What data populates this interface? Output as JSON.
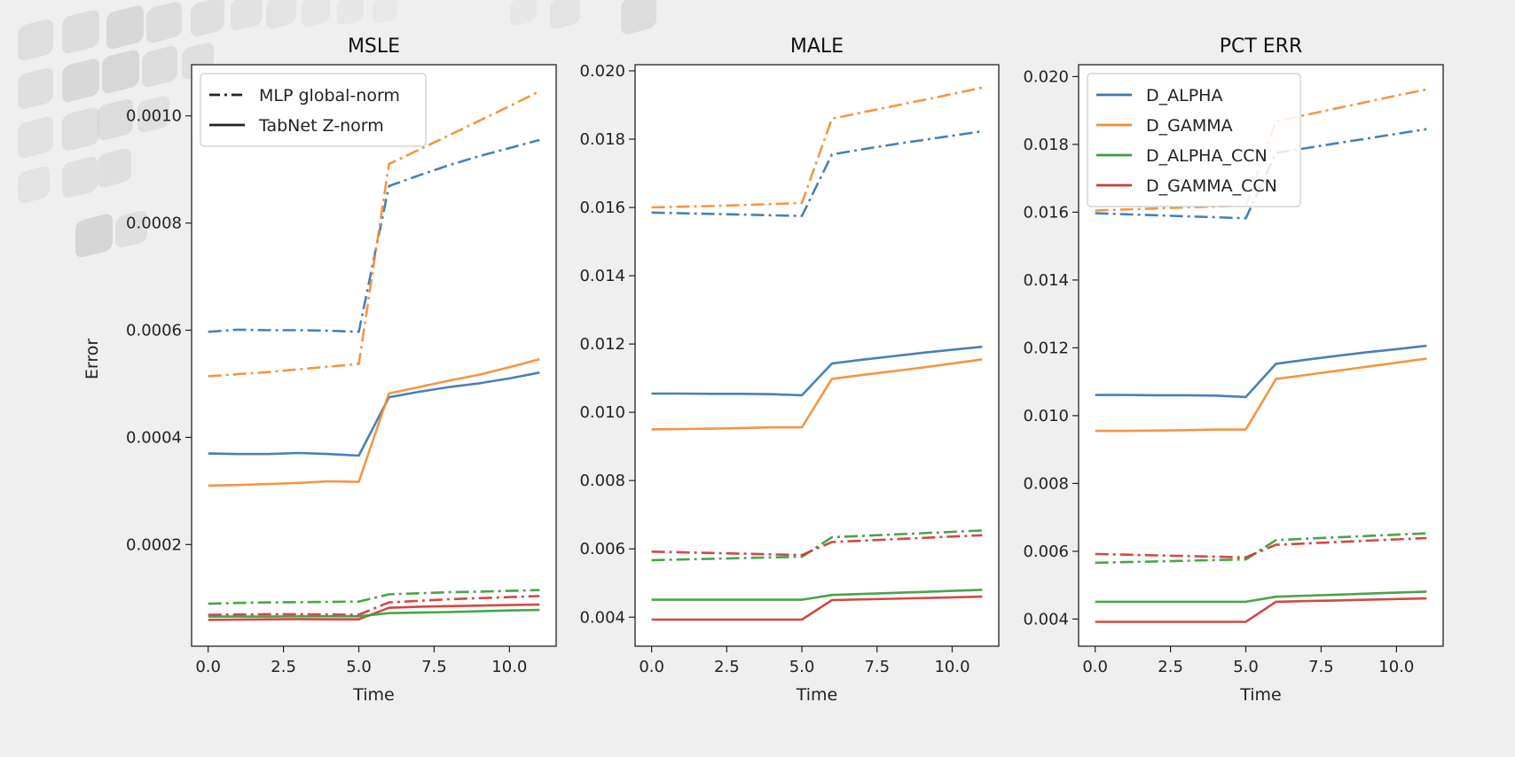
{
  "figure": {
    "ylabel": "Error"
  },
  "colors": {
    "D_ALPHA": "#3a75b0",
    "D_GAMMA": "#f28d35",
    "D_ALPHA_CCN": "#3a9c3a",
    "D_GAMMA_CCN": "#cc3a36"
  },
  "chart_data": [
    {
      "type": "line",
      "title": "MSLE",
      "xlabel": "Time",
      "ylabel": "Error",
      "x": [
        0,
        1,
        2,
        3,
        4,
        5,
        6,
        7,
        8,
        9,
        10,
        11
      ],
      "xlim": [
        -0.55,
        11.55
      ],
      "ylim": [
        1.03e-05,
        0.0010955
      ],
      "xticks": [
        0.0,
        2.5,
        5.0,
        7.5,
        10.0
      ],
      "xtick_labels": [
        "0.0",
        "2.5",
        "5.0",
        "7.5",
        "10.0"
      ],
      "yticks": [
        0.0002,
        0.0004,
        0.0006,
        0.0008,
        0.001
      ],
      "ytick_labels": [
        "0.0002",
        "0.0004",
        "0.0006",
        "0.0008",
        "0.0010"
      ],
      "legend": {
        "placement": "upper-left",
        "entries": [
          {
            "label": "MLP global-norm",
            "style": "dashdot"
          },
          {
            "label": "TabNet Z-norm",
            "style": "solid"
          }
        ]
      },
      "series": [
        {
          "name": "D_ALPHA",
          "model": "MLP global-norm",
          "style": "dashdot",
          "values": [
            0.000597,
            0.000601,
            0.0006,
            0.0006,
            0.000599,
            0.000597,
            0.000869,
            0.000889,
            0.000908,
            0.000925,
            0.00094,
            0.000955
          ]
        },
        {
          "name": "D_GAMMA",
          "model": "MLP global-norm",
          "style": "dashdot",
          "values": [
            0.000514,
            0.000518,
            0.000522,
            0.000527,
            0.000532,
            0.000537,
            0.00091,
            0.000937,
            0.000964,
            0.000991,
            0.001018,
            0.001046
          ]
        },
        {
          "name": "D_ALPHA",
          "model": "TabNet Z-norm",
          "style": "solid",
          "values": [
            0.00037,
            0.000369,
            0.000369,
            0.000371,
            0.000369,
            0.000366,
            0.000475,
            0.000485,
            0.000494,
            0.000501,
            0.00051,
            0.000521
          ]
        },
        {
          "name": "D_GAMMA",
          "model": "TabNet Z-norm",
          "style": "solid",
          "values": [
            0.00031,
            0.000311,
            0.000313,
            0.000315,
            0.000318,
            0.000317,
            0.000482,
            0.000494,
            0.000506,
            0.000517,
            0.000531,
            0.000546
          ]
        },
        {
          "name": "D_ALPHA_CCN",
          "model": "MLP global-norm",
          "style": "dashdot",
          "values": [
            8.95e-05,
            9.1e-05,
            9.2e-05,
            9.25e-05,
            9.3e-05,
            9.35e-05,
            0.000107,
            0.000109,
            0.000111,
            0.000112,
            0.0001135,
            0.000115
          ]
        },
        {
          "name": "D_GAMMA_CCN",
          "model": "MLP global-norm",
          "style": "dashdot",
          "values": [
            6.9e-05,
            6.95e-05,
            7e-05,
            7e-05,
            6.95e-05,
            6.9e-05,
            9.2e-05,
            9.5e-05,
            9.8e-05,
            0.0001,
            0.000102,
            0.000104
          ]
        },
        {
          "name": "D_GAMMA_CCN",
          "model": "TabNet Z-norm",
          "style": "solid",
          "values": [
            5.95e-05,
            6e-05,
            6.05e-05,
            6.1e-05,
            6.05e-05,
            6.05e-05,
            8.2e-05,
            8.4e-05,
            8.5e-05,
            8.6e-05,
            8.7e-05,
            8.8e-05
          ]
        },
        {
          "name": "D_ALPHA_CCN",
          "model": "TabNet Z-norm",
          "style": "solid",
          "values": [
            6.55e-05,
            6.55e-05,
            6.55e-05,
            6.6e-05,
            6.6e-05,
            6.6e-05,
            7.2e-05,
            7.3e-05,
            7.4e-05,
            7.55e-05,
            7.7e-05,
            7.8e-05
          ]
        }
      ]
    },
    {
      "type": "line",
      "title": "MALE",
      "xlabel": "Time",
      "ylabel": "",
      "x": [
        0,
        1,
        2,
        3,
        4,
        5,
        6,
        7,
        8,
        9,
        10,
        11
      ],
      "xlim": [
        -0.55,
        11.55
      ],
      "ylim": [
        0.00315,
        0.02018
      ],
      "xticks": [
        0.0,
        2.5,
        5.0,
        7.5,
        10.0
      ],
      "xtick_labels": [
        "0.0",
        "2.5",
        "5.0",
        "7.5",
        "10.0"
      ],
      "yticks": [
        0.004,
        0.006,
        0.008,
        0.01,
        0.012,
        0.014,
        0.016,
        0.018,
        0.02
      ],
      "ytick_labels": [
        "0.004",
        "0.006",
        "0.008",
        "0.010",
        "0.012",
        "0.014",
        "0.016",
        "0.018",
        "0.020"
      ],
      "series": [
        {
          "name": "D_ALPHA",
          "model": "MLP global-norm",
          "style": "dashdot",
          "values": [
            0.01585,
            0.01583,
            0.01581,
            0.01579,
            0.01577,
            0.01575,
            0.01755,
            0.0177,
            0.01784,
            0.01797,
            0.0181,
            0.01823
          ]
        },
        {
          "name": "D_GAMMA",
          "model": "MLP global-norm",
          "style": "dashdot",
          "values": [
            0.016,
            0.01602,
            0.01604,
            0.01607,
            0.0161,
            0.01613,
            0.0186,
            0.01878,
            0.01896,
            0.01914,
            0.01932,
            0.01951
          ]
        },
        {
          "name": "D_ALPHA",
          "model": "TabNet Z-norm",
          "style": "solid",
          "values": [
            0.01055,
            0.01055,
            0.01054,
            0.01054,
            0.01053,
            0.0105,
            0.01143,
            0.01154,
            0.01164,
            0.01174,
            0.01183,
            0.01192
          ]
        },
        {
          "name": "D_GAMMA",
          "model": "TabNet Z-norm",
          "style": "solid",
          "values": [
            0.0095,
            0.00951,
            0.00952,
            0.00954,
            0.00956,
            0.00956,
            0.01098,
            0.01109,
            0.0112,
            0.01131,
            0.01143,
            0.01155
          ]
        },
        {
          "name": "D_ALPHA_CCN",
          "model": "MLP global-norm",
          "style": "dashdot",
          "values": [
            0.00567,
            0.00569,
            0.00571,
            0.00573,
            0.00575,
            0.00577,
            0.00634,
            0.00638,
            0.00642,
            0.00646,
            0.0065,
            0.00654
          ]
        },
        {
          "name": "D_GAMMA_CCN",
          "model": "MLP global-norm",
          "style": "dashdot",
          "values": [
            0.00592,
            0.0059,
            0.00588,
            0.00586,
            0.00584,
            0.00582,
            0.0062,
            0.00624,
            0.00628,
            0.00632,
            0.00636,
            0.0064
          ]
        },
        {
          "name": "D_ALPHA_CCN",
          "model": "TabNet Z-norm",
          "style": "solid",
          "values": [
            0.00451,
            0.00451,
            0.00451,
            0.00451,
            0.00451,
            0.00451,
            0.00465,
            0.00468,
            0.00471,
            0.00474,
            0.00477,
            0.0048
          ]
        },
        {
          "name": "D_GAMMA_CCN",
          "model": "TabNet Z-norm",
          "style": "solid",
          "values": [
            0.00393,
            0.00393,
            0.00393,
            0.00393,
            0.00393,
            0.00393,
            0.0045,
            0.00452,
            0.00454,
            0.00456,
            0.00458,
            0.0046
          ]
        }
      ]
    },
    {
      "type": "line",
      "title": "PCT ERR",
      "xlabel": "Time",
      "ylabel": "",
      "x": [
        0,
        1,
        2,
        3,
        4,
        5,
        6,
        7,
        8,
        9,
        10,
        11
      ],
      "xlim": [
        -0.55,
        11.55
      ],
      "ylim": [
        0.0032,
        0.02035
      ],
      "xticks": [
        0.0,
        2.5,
        5.0,
        7.5,
        10.0
      ],
      "xtick_labels": [
        "0.0",
        "2.5",
        "5.0",
        "7.5",
        "10.0"
      ],
      "yticks": [
        0.004,
        0.006,
        0.008,
        0.01,
        0.012,
        0.014,
        0.016,
        0.018,
        0.02
      ],
      "ytick_labels": [
        "0.004",
        "0.006",
        "0.008",
        "0.010",
        "0.012",
        "0.014",
        "0.016",
        "0.018",
        "0.020"
      ],
      "legend": {
        "placement": "upper-left",
        "entries": [
          {
            "label": "D_ALPHA",
            "color": "#3a75b0"
          },
          {
            "label": "D_GAMMA",
            "color": "#f28d35"
          },
          {
            "label": "D_ALPHA_CCN",
            "color": "#3a9c3a"
          },
          {
            "label": "D_GAMMA_CCN",
            "color": "#cc3a36"
          }
        ]
      },
      "series": [
        {
          "name": "D_ALPHA",
          "model": "MLP global-norm",
          "style": "dashdot",
          "values": [
            0.01597,
            0.01594,
            0.01591,
            0.01588,
            0.01585,
            0.01582,
            0.01775,
            0.01789,
            0.01803,
            0.01817,
            0.01831,
            0.01845
          ]
        },
        {
          "name": "D_GAMMA",
          "model": "MLP global-norm",
          "style": "dashdot",
          "values": [
            0.01605,
            0.01608,
            0.01611,
            0.01614,
            0.01617,
            0.0162,
            0.01868,
            0.01887,
            0.01906,
            0.01925,
            0.01944,
            0.01962
          ]
        },
        {
          "name": "D_ALPHA",
          "model": "TabNet Z-norm",
          "style": "solid",
          "values": [
            0.01061,
            0.01061,
            0.0106,
            0.0106,
            0.01059,
            0.01055,
            0.01153,
            0.01165,
            0.01176,
            0.01187,
            0.01196,
            0.01206
          ]
        },
        {
          "name": "D_GAMMA",
          "model": "TabNet Z-norm",
          "style": "solid",
          "values": [
            0.00955,
            0.00955,
            0.00956,
            0.00957,
            0.00959,
            0.00959,
            0.01108,
            0.0112,
            0.01132,
            0.01144,
            0.01156,
            0.01168
          ]
        },
        {
          "name": "D_ALPHA_CCN",
          "model": "MLP global-norm",
          "style": "dashdot",
          "values": [
            0.00566,
            0.00568,
            0.0057,
            0.00572,
            0.00574,
            0.00576,
            0.00633,
            0.00637,
            0.00641,
            0.00645,
            0.00649,
            0.00653
          ]
        },
        {
          "name": "D_GAMMA_CCN",
          "model": "MLP global-norm",
          "style": "dashdot",
          "values": [
            0.00592,
            0.0059,
            0.00588,
            0.00586,
            0.00584,
            0.00582,
            0.00619,
            0.00623,
            0.00627,
            0.00631,
            0.00635,
            0.00639
          ]
        },
        {
          "name": "D_ALPHA_CCN",
          "model": "TabNet Z-norm",
          "style": "solid",
          "values": [
            0.00451,
            0.00451,
            0.00451,
            0.00451,
            0.00451,
            0.00451,
            0.00466,
            0.00469,
            0.00472,
            0.00475,
            0.00478,
            0.00481
          ]
        },
        {
          "name": "D_GAMMA_CCN",
          "model": "TabNet Z-norm",
          "style": "solid",
          "values": [
            0.00392,
            0.00392,
            0.00392,
            0.00392,
            0.00392,
            0.00392,
            0.00451,
            0.00453,
            0.00455,
            0.00457,
            0.00459,
            0.00461
          ]
        }
      ]
    }
  ]
}
